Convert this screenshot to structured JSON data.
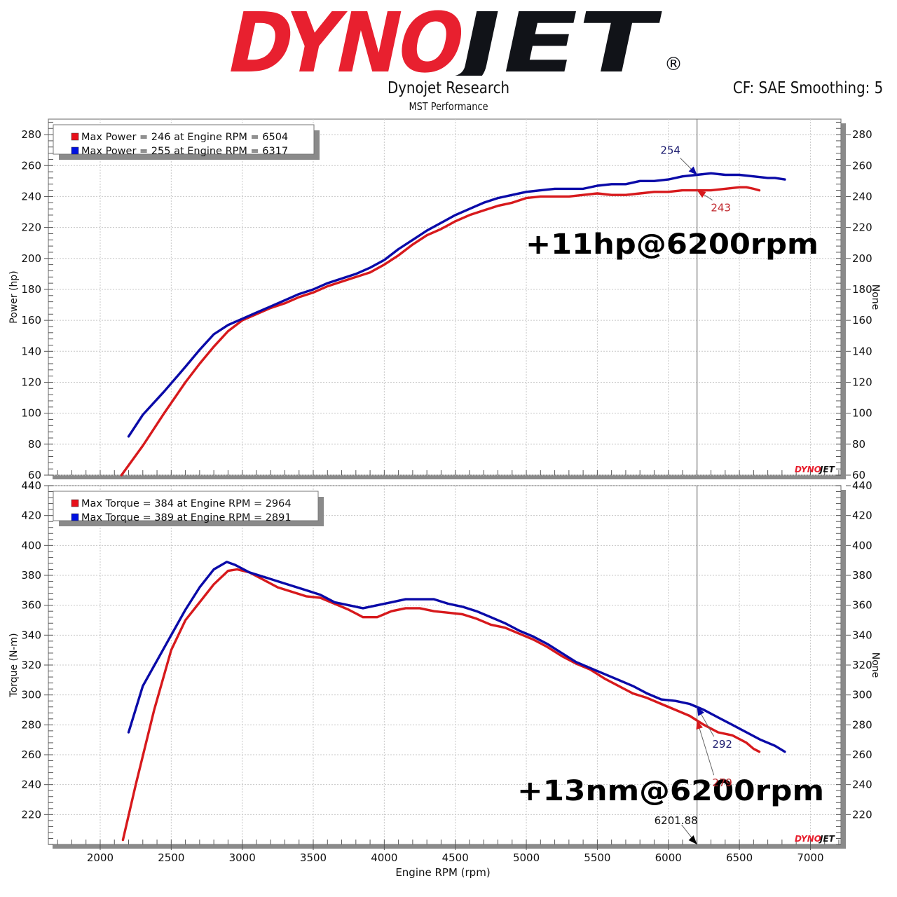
{
  "header": {
    "logo_left": "DYNO",
    "logo_right": "JET",
    "logo_mark": "®",
    "title": "Dynojet Research",
    "subtitle": "MST Performance",
    "settings": "CF: SAE Smoothing: 5"
  },
  "colors": {
    "run1": "#d7191c",
    "run2": "#0a0aa8",
    "logo_red": "#e8202f",
    "logo_black": "#111318",
    "axis_frame": "#808080"
  },
  "chart_data": [
    {
      "type": "line",
      "title": "Power",
      "xlabel": "Engine RPM (rpm)",
      "ylabel": "Power (hp)",
      "ylabel_right": "None",
      "xlim": [
        1635,
        7215
      ],
      "ylim": [
        60,
        290
      ],
      "x_ticks": [
        2000,
        2500,
        3000,
        3500,
        4000,
        4500,
        5000,
        5500,
        6000,
        6500,
        7000
      ],
      "y_ticks": [
        60,
        80,
        100,
        120,
        140,
        160,
        180,
        200,
        220,
        240,
        260,
        280
      ],
      "grid": true,
      "legend": [
        {
          "color": "#e8101a",
          "label": "Max Power = 246 at Engine RPM = 6504"
        },
        {
          "color": "#0010e0",
          "label": "Max Power = 255 at Engine RPM = 6317"
        }
      ],
      "legend_position": "top-left",
      "cursor_rpm": 6201.88,
      "cursor_labels": [
        {
          "series": "run2",
          "value": "254"
        },
        {
          "series": "run1",
          "value": "243"
        }
      ],
      "annotation": "+11hp@6200rpm",
      "series": [
        {
          "name": "run1",
          "x": [
            2150,
            2300,
            2450,
            2600,
            2700,
            2800,
            2900,
            3000,
            3100,
            3200,
            3300,
            3400,
            3500,
            3600,
            3700,
            3800,
            3900,
            4000,
            4100,
            4200,
            4300,
            4400,
            4500,
            4600,
            4700,
            4800,
            4900,
            5000,
            5100,
            5200,
            5300,
            5400,
            5500,
            5600,
            5700,
            5800,
            5900,
            6000,
            6100,
            6200,
            6300,
            6400,
            6500,
            6550,
            6600,
            6640
          ],
          "y": [
            60,
            79,
            100,
            120,
            132,
            143,
            153,
            160,
            164,
            168,
            171,
            175,
            178,
            182,
            185,
            188,
            191,
            196,
            202,
            209,
            215,
            219,
            224,
            228,
            231,
            234,
            236,
            239,
            240,
            240,
            240,
            241,
            242,
            241,
            241,
            242,
            243,
            243,
            244,
            244,
            244,
            245,
            246,
            246,
            245,
            244
          ]
        },
        {
          "name": "run2",
          "x": [
            2200,
            2300,
            2450,
            2600,
            2700,
            2800,
            2900,
            3000,
            3100,
            3200,
            3300,
            3400,
            3500,
            3600,
            3700,
            3800,
            3900,
            4000,
            4100,
            4200,
            4300,
            4400,
            4500,
            4600,
            4700,
            4800,
            4900,
            5000,
            5100,
            5200,
            5300,
            5400,
            5500,
            5600,
            5700,
            5800,
            5900,
            6000,
            6100,
            6200,
            6300,
            6400,
            6500,
            6600,
            6700,
            6750,
            6820
          ],
          "y": [
            85,
            99,
            114,
            130,
            141,
            151,
            157,
            161,
            165,
            169,
            173,
            177,
            180,
            184,
            187,
            190,
            194,
            199,
            206,
            212,
            218,
            223,
            228,
            232,
            236,
            239,
            241,
            243,
            244,
            245,
            245,
            245,
            247,
            248,
            248,
            250,
            250,
            251,
            253,
            254,
            255,
            254,
            254,
            253,
            252,
            252,
            251
          ]
        }
      ]
    },
    {
      "type": "line",
      "title": "Torque",
      "xlabel": "Engine RPM (rpm)",
      "ylabel": "Torque (N-m)",
      "ylabel_right": "None",
      "xlim": [
        1635,
        7215
      ],
      "ylim": [
        200,
        440
      ],
      "x_ticks": [
        2000,
        2500,
        3000,
        3500,
        4000,
        4500,
        5000,
        5500,
        6000,
        6500,
        7000
      ],
      "y_ticks": [
        220,
        240,
        260,
        280,
        300,
        320,
        340,
        360,
        380,
        400,
        420,
        440
      ],
      "grid": true,
      "legend": [
        {
          "color": "#e8101a",
          "label": "Max Torque = 384 at Engine RPM = 2964"
        },
        {
          "color": "#0010e0",
          "label": "Max Torque = 389 at Engine RPM = 2891"
        }
      ],
      "legend_position": "top-left",
      "cursor_rpm": 6201.88,
      "cursor_value_label": "6201.88",
      "cursor_labels": [
        {
          "series": "run2",
          "value": "292"
        },
        {
          "series": "run1",
          "value": "279"
        }
      ],
      "annotation": "+13nm@6200rpm",
      "series": [
        {
          "name": "run1",
          "x": [
            2160,
            2250,
            2380,
            2500,
            2600,
            2700,
            2800,
            2900,
            2964,
            3050,
            3150,
            3250,
            3350,
            3450,
            3550,
            3650,
            3750,
            3850,
            3950,
            4050,
            4150,
            4250,
            4350,
            4450,
            4550,
            4650,
            4750,
            4850,
            4950,
            5050,
            5150,
            5250,
            5350,
            5450,
            5550,
            5650,
            5750,
            5850,
            5950,
            6050,
            6150,
            6250,
            6350,
            6450,
            6550,
            6600,
            6640
          ],
          "y": [
            203,
            240,
            290,
            330,
            350,
            362,
            374,
            383,
            384,
            382,
            377,
            372,
            369,
            366,
            365,
            361,
            357,
            352,
            352,
            356,
            358,
            358,
            356,
            355,
            354,
            351,
            347,
            345,
            341,
            337,
            332,
            326,
            321,
            317,
            311,
            306,
            301,
            298,
            294,
            290,
            286,
            280,
            275,
            273,
            268,
            264,
            262
          ]
        },
        {
          "name": "run2",
          "x": [
            2200,
            2300,
            2400,
            2500,
            2600,
            2700,
            2800,
            2891,
            2950,
            3050,
            3150,
            3250,
            3350,
            3450,
            3550,
            3650,
            3750,
            3850,
            3950,
            4050,
            4150,
            4250,
            4350,
            4450,
            4550,
            4650,
            4750,
            4850,
            4950,
            5050,
            5150,
            5250,
            5350,
            5450,
            5550,
            5650,
            5750,
            5850,
            5950,
            6050,
            6150,
            6250,
            6350,
            6450,
            6550,
            6650,
            6750,
            6820
          ],
          "y": [
            275,
            306,
            323,
            340,
            357,
            372,
            384,
            389,
            387,
            382,
            379,
            376,
            373,
            370,
            367,
            362,
            360,
            358,
            360,
            362,
            364,
            364,
            364,
            361,
            359,
            356,
            352,
            348,
            343,
            339,
            334,
            328,
            322,
            318,
            314,
            310,
            306,
            301,
            297,
            296,
            294,
            290,
            285,
            280,
            275,
            270,
            266,
            262
          ]
        }
      ]
    }
  ]
}
